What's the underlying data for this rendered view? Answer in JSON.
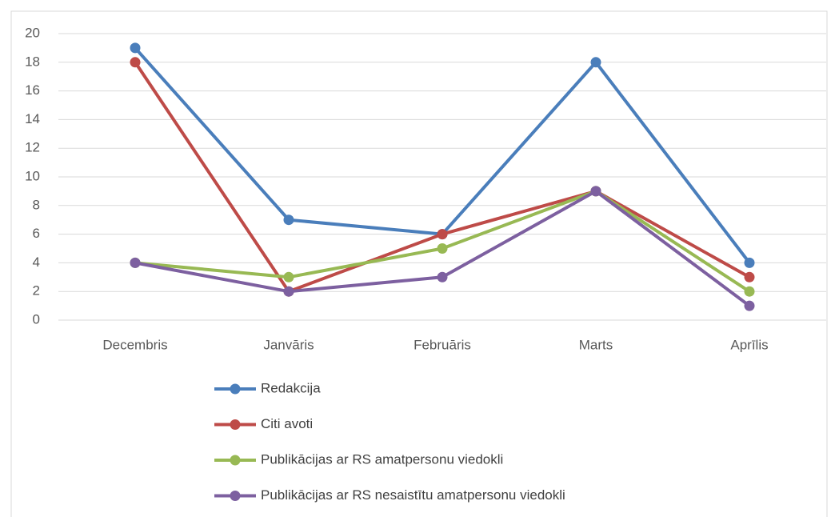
{
  "chart_data": {
    "type": "line",
    "categories": [
      "Decembris",
      "Janvāris",
      "Februāris",
      "Marts",
      "Aprīlis"
    ],
    "series": [
      {
        "name": "Redakcija",
        "color": "#4a7ebb",
        "values": [
          19,
          7,
          6,
          18,
          4
        ]
      },
      {
        "name": "Citi avoti",
        "color": "#be4b48",
        "values": [
          18,
          2,
          6,
          9,
          3
        ]
      },
      {
        "name": "Publikācijas ar RS amatpersonu viedokli",
        "color": "#98b954",
        "values": [
          4,
          3,
          5,
          9,
          2
        ]
      },
      {
        "name": "Publikācijas ar RS nesaistītu amatpersonu viedokli",
        "color": "#7d60a0",
        "values": [
          4,
          2,
          3,
          9,
          1
        ]
      }
    ],
    "ylim": [
      0,
      20
    ],
    "yticks": [
      0,
      2,
      4,
      6,
      8,
      10,
      12,
      14,
      16,
      18,
      20
    ],
    "grid": true,
    "legend": "bottom"
  }
}
